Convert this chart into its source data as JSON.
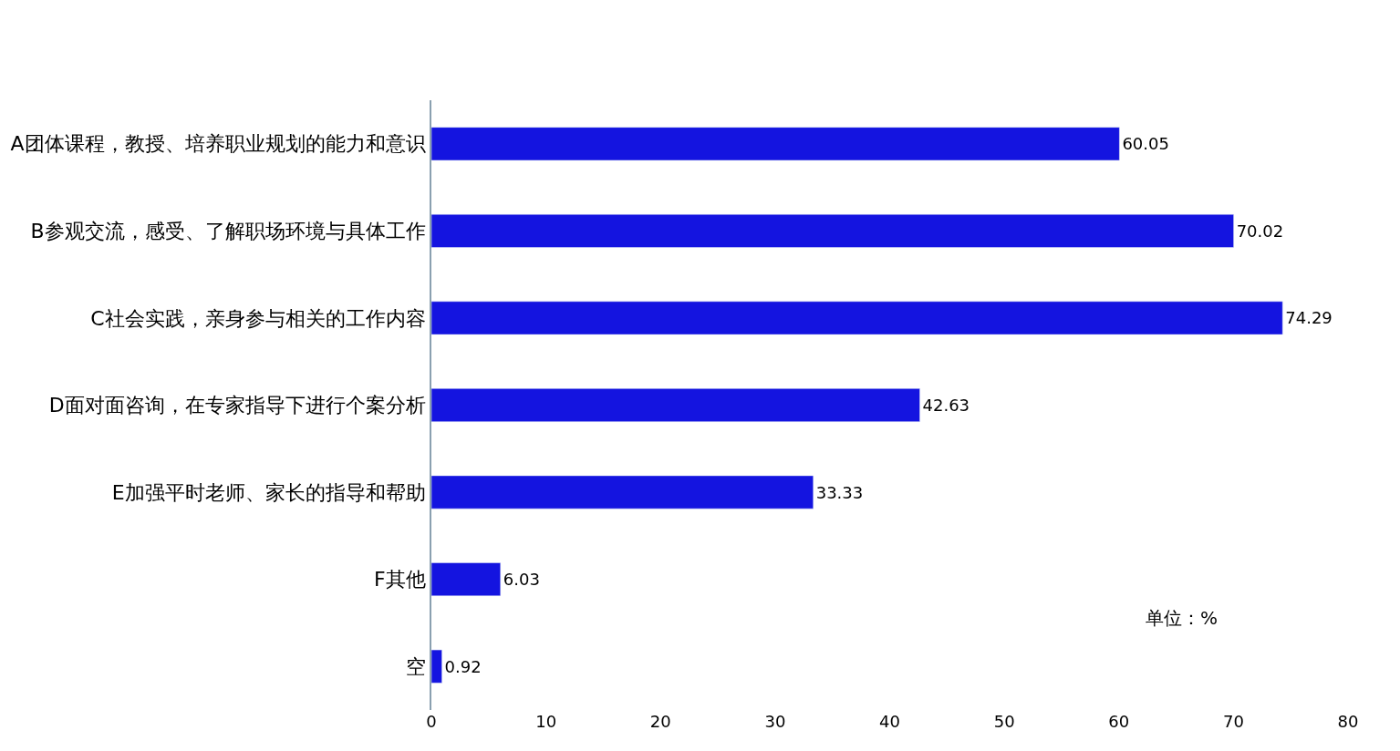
{
  "chart_data": {
    "type": "bar",
    "orientation": "horizontal",
    "categories": [
      "A团体课程，教授、培养职业规划的能力和意识",
      "B参观交流，感受、了解职场环境与具体工作",
      "C社会实践，亲身参与相关的工作内容",
      "D面对面咨询，在专家指导下进行个案分析",
      "E加强平时老师、家长的指导和帮助",
      "F其他",
      "空"
    ],
    "values": [
      60.05,
      70.02,
      74.29,
      42.63,
      33.33,
      6.03,
      0.92
    ],
    "color": "#1414e0",
    "data_labels": true,
    "xlim": [
      0,
      80
    ],
    "xticks": [
      0,
      10,
      20,
      30,
      40,
      50,
      60,
      70,
      80
    ],
    "annotations": [
      "单位：%"
    ]
  }
}
